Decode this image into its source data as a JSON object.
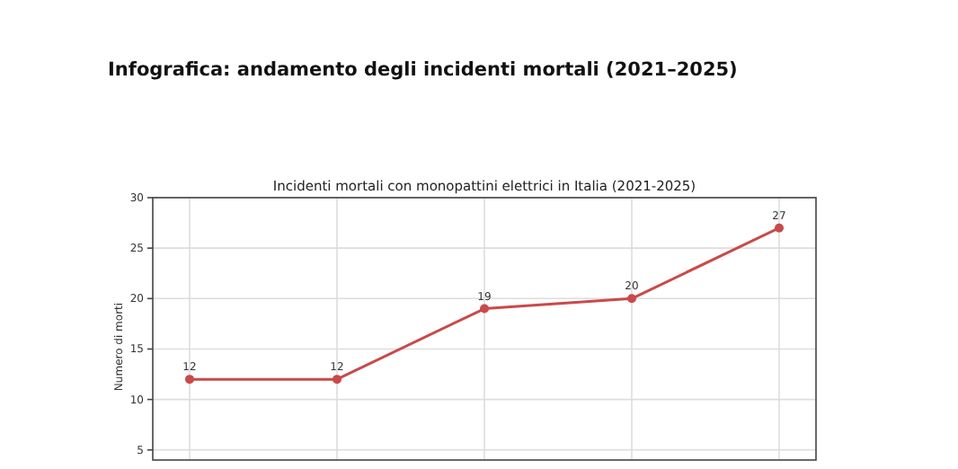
{
  "chart_data": {
    "type": "line",
    "title": "Infografica: andamento degli incidenti mortali (2021–2025)",
    "subtitle": "Incidenti mortali con monopattini elettrici in Italia (2021-2025)",
    "ylabel": "Numero di morti",
    "categories": [
      null,
      null,
      null,
      null,
      null
    ],
    "series": [
      {
        "color": "#c94a4a",
        "values": [
          12,
          12,
          19,
          20,
          27
        ]
      }
    ],
    "ylim": [
      4,
      30
    ],
    "yticks": [
      5,
      10,
      15,
      20,
      25,
      30
    ],
    "grid": true,
    "marker": "circle",
    "line_style": "solid",
    "data_labels": true
  }
}
